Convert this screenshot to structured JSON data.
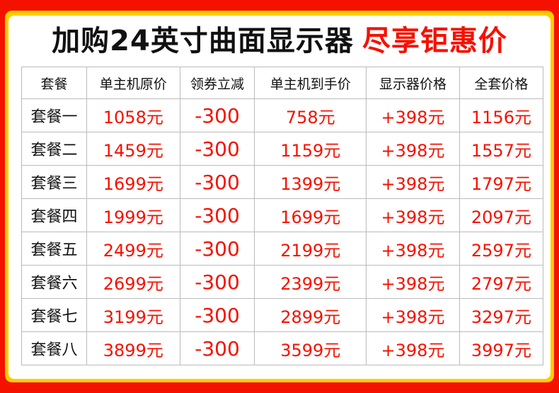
{
  "title": {
    "main": "加购24英寸曲面显示器",
    "highlight": "尽享钜惠价"
  },
  "colors": {
    "background": "#f51100",
    "frame": "#ffcc00",
    "price": "#f51100"
  },
  "table": {
    "headers": [
      "套餐",
      "单主机原价",
      "领券立减",
      "单主机到手价",
      "显示器价格",
      "全套价格"
    ],
    "rows": [
      [
        "套餐一",
        "1058元",
        "-300",
        "758元",
        "+398元",
        "1156元"
      ],
      [
        "套餐二",
        "1459元",
        "-300",
        "1159元",
        "+398元",
        "1557元"
      ],
      [
        "套餐三",
        "1699元",
        "-300",
        "1399元",
        "+398元",
        "1797元"
      ],
      [
        "套餐四",
        "1999元",
        "-300",
        "1699元",
        "+398元",
        "2097元"
      ],
      [
        "套餐五",
        "2499元",
        "-300",
        "2199元",
        "+398元",
        "2597元"
      ],
      [
        "套餐六",
        "2699元",
        "-300",
        "2399元",
        "+398元",
        "2797元"
      ],
      [
        "套餐七",
        "3199元",
        "-300",
        "2899元",
        "+398元",
        "3297元"
      ],
      [
        "套餐八",
        "3899元",
        "-300",
        "3599元",
        "+398元",
        "3997元"
      ]
    ]
  }
}
